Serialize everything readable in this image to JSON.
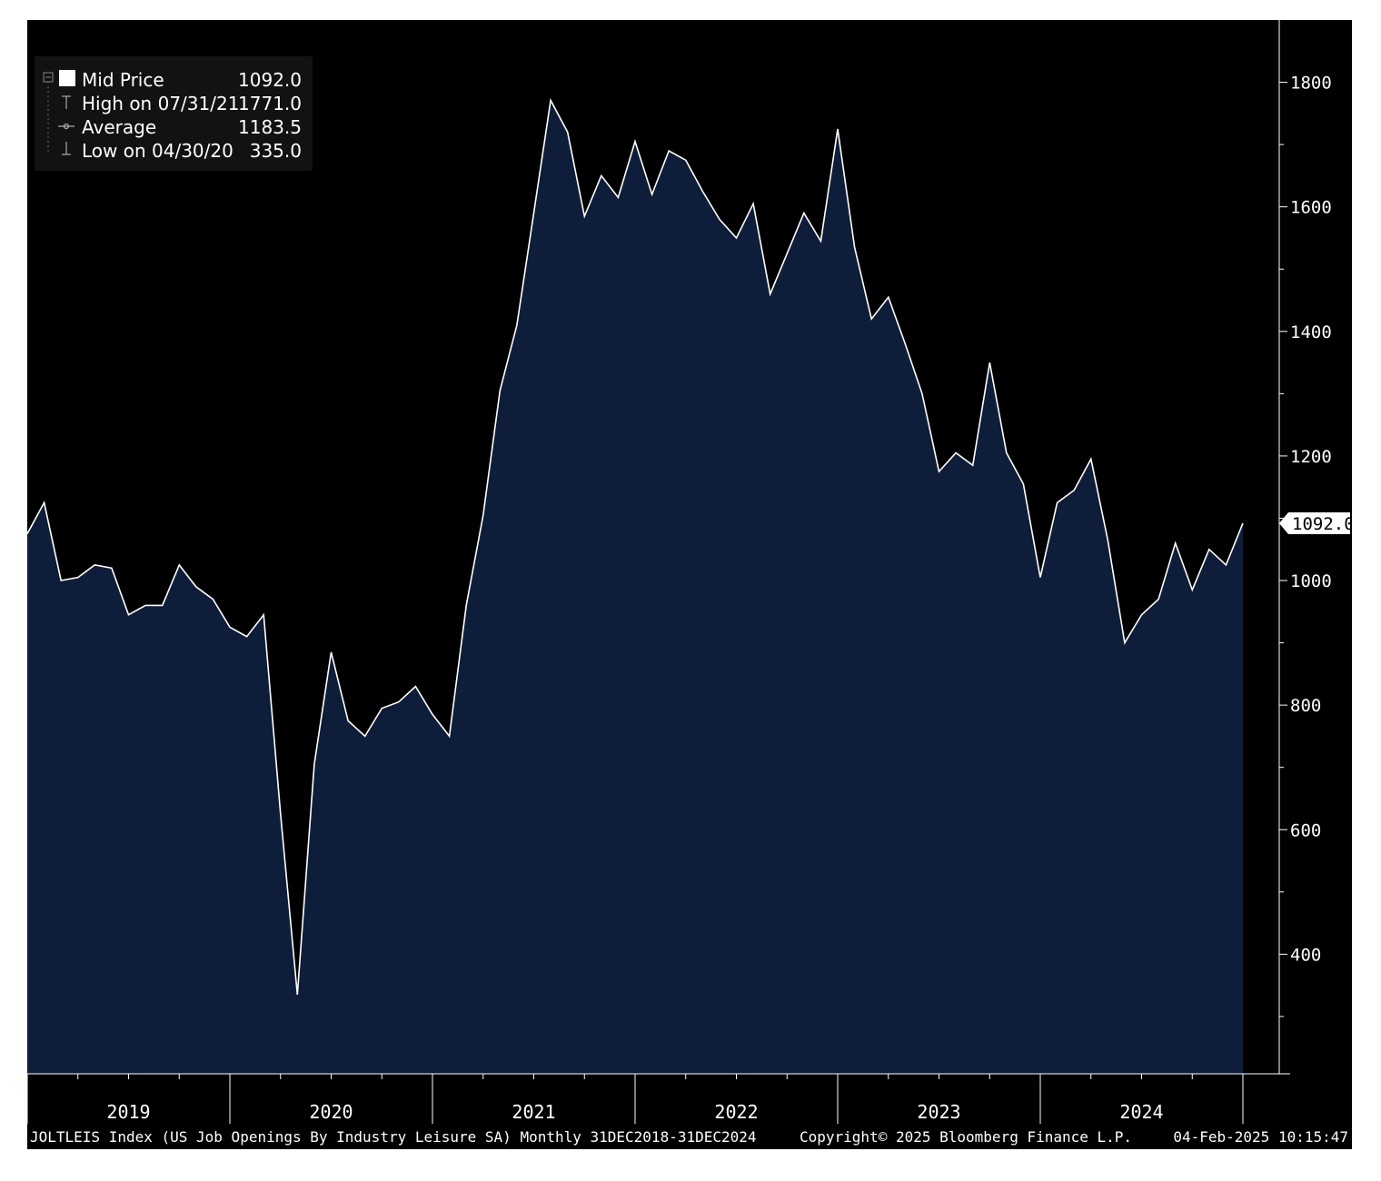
{
  "legend": {
    "mid_label": "Mid Price",
    "mid_value": "1092.0",
    "high_label": "High on 07/31/21",
    "high_value": "1771.0",
    "avg_label": "Average",
    "avg_value": "1183.5",
    "low_label": "Low on 04/30/20",
    "low_value": "335.0"
  },
  "last_value_tag": "1092.0",
  "footer": {
    "description": "JOLTLEIS Index (US Job Openings By Industry Leisure SA)  Monthly 31DEC2018-31DEC2024",
    "copyright": "Copyright© 2025 Bloomberg Finance L.P.",
    "timestamp": "04-Feb-2025 10:15:47"
  },
  "colors": {
    "background": "#000000",
    "area_fill": "#0e1e3a",
    "line": "#ffffff",
    "text": "#ffffff"
  },
  "chart_data": {
    "type": "area",
    "x_start": "2018-12",
    "x_end": "2024-12",
    "frequency": "monthly",
    "values": [
      1075,
      1125,
      1000,
      1005,
      1025,
      1020,
      945,
      960,
      960,
      1025,
      990,
      970,
      925,
      910,
      945,
      625,
      335,
      705,
      885,
      775,
      750,
      795,
      805,
      830,
      785,
      750,
      960,
      1105,
      1305,
      1410,
      1590,
      1771,
      1720,
      1585,
      1650,
      1615,
      1705,
      1620,
      1690,
      1675,
      1625,
      1580,
      1550,
      1605,
      1460,
      1525,
      1590,
      1545,
      1725,
      1535,
      1420,
      1455,
      1380,
      1300,
      1175,
      1205,
      1185,
      1350,
      1205,
      1155,
      1005,
      1125,
      1145,
      1195,
      1065,
      900,
      945,
      970,
      1060,
      985,
      1050,
      1025,
      1092
    ],
    "x_ticks": [
      "2019",
      "2020",
      "2021",
      "2022",
      "2023",
      "2024"
    ],
    "y_ticks": [
      400,
      600,
      800,
      1000,
      1200,
      1400,
      1600,
      1800
    ],
    "ylim": [
      208,
      1900
    ],
    "axis_position": "right",
    "grid": false,
    "legend_position": "top-left"
  }
}
